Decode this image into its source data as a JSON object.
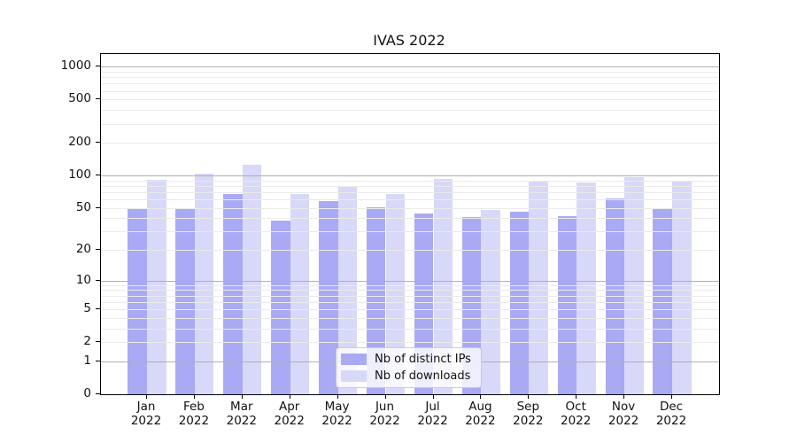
{
  "chart_data": {
    "type": "bar",
    "title": "IVAS 2022",
    "categories": [
      "Jan 2022",
      "Feb 2022",
      "Mar 2022",
      "Apr 2022",
      "May 2022",
      "Jun 2022",
      "Jul 2022",
      "Aug 2022",
      "Sep 2022",
      "Oct 2022",
      "Nov 2022",
      "Dec 2022"
    ],
    "series": [
      {
        "name": "Nb of distinct IPs",
        "color": "#a9a9f4",
        "values": [
          50,
          49,
          67,
          38,
          58,
          51,
          44,
          41,
          46,
          42,
          61,
          49
        ]
      },
      {
        "name": "Nb of downloads",
        "color": "#d8d8f8",
        "values": [
          92,
          104,
          125,
          67,
          79,
          68,
          93,
          48,
          89,
          86,
          97,
          88
        ]
      }
    ],
    "yscale": "log1p",
    "ylim": [
      0,
      1310
    ],
    "yticks": [
      1000,
      500,
      200,
      100,
      50,
      20,
      10,
      5,
      2,
      1,
      0
    ],
    "grid": {
      "major_ticks": [
        1,
        10,
        100,
        1000
      ],
      "major_color": "#b0b0b0",
      "minor_color": "#ebebeb",
      "grid_on_top_of_bars": true
    },
    "legend": {
      "position": "lower center (inside plot)"
    },
    "axis_color": "#000000",
    "background_color": "#ffffff"
  }
}
